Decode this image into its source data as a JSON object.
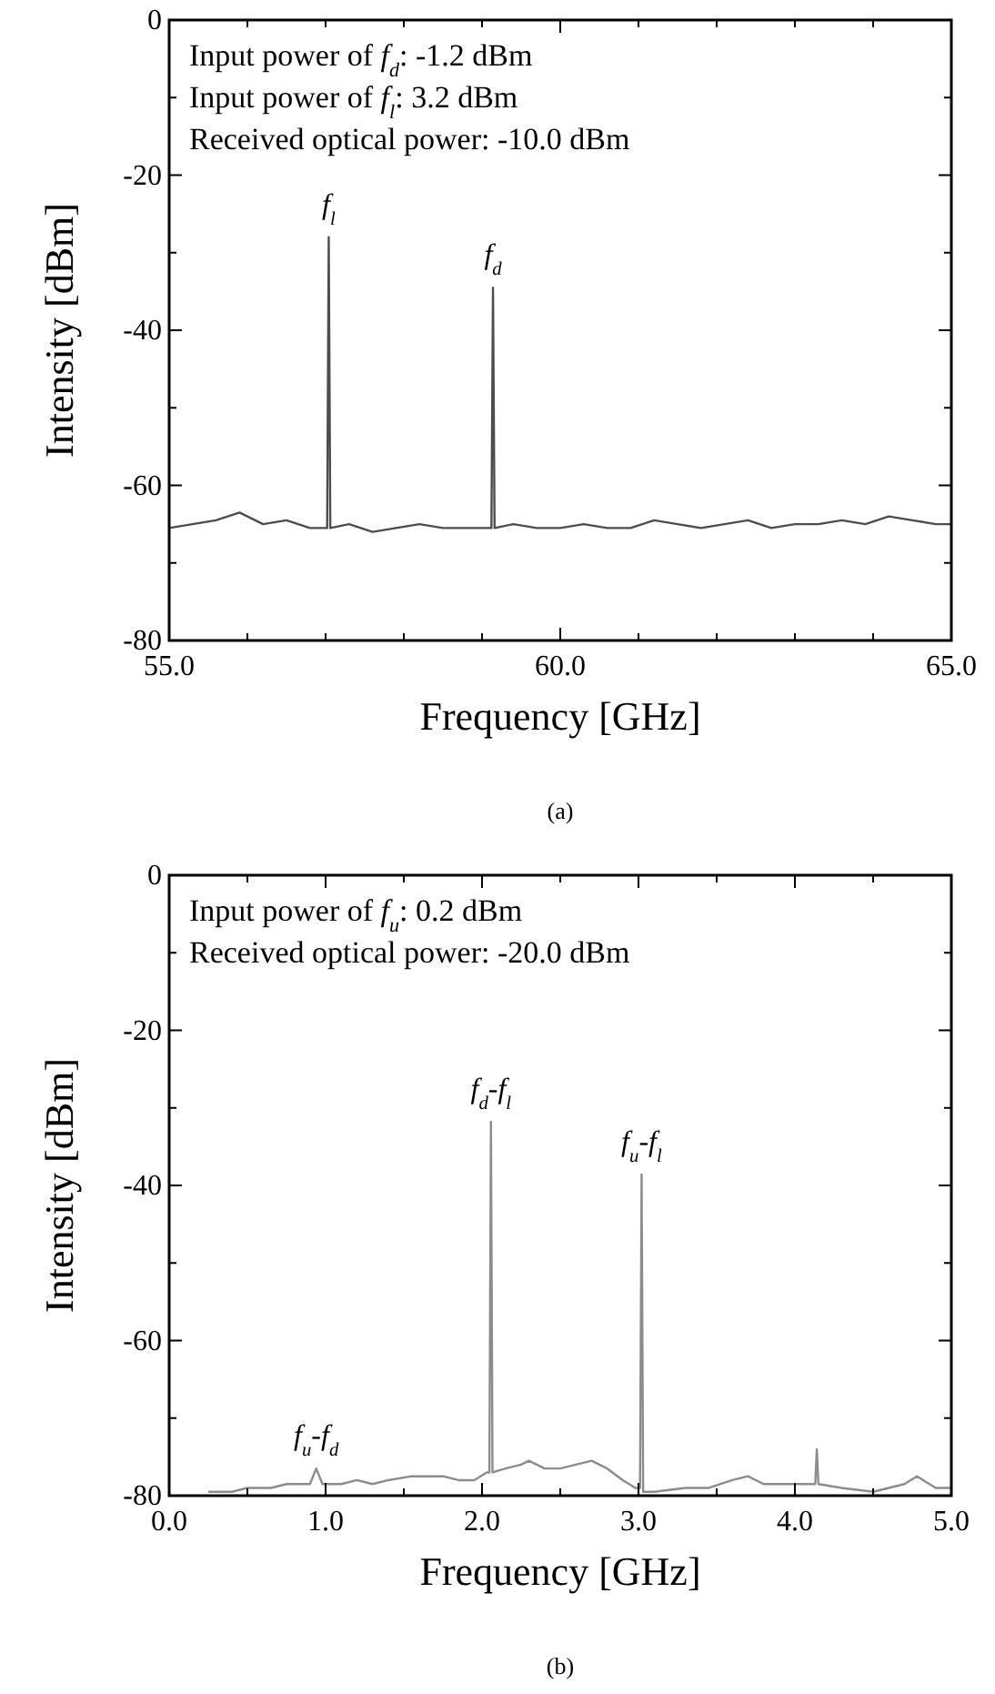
{
  "chart_data": [
    {
      "type": "line",
      "title": "(a)",
      "xlabel": "Frequency [GHz]",
      "ylabel": "Intensity [dBm]",
      "x": [
        55.0,
        55.3,
        55.6,
        55.9,
        56.2,
        56.5,
        56.8,
        57.02,
        57.04,
        57.06,
        57.3,
        57.6,
        57.9,
        58.2,
        58.5,
        58.8,
        59.12,
        59.14,
        59.16,
        59.4,
        59.7,
        60.0,
        60.3,
        60.6,
        60.9,
        61.2,
        61.5,
        61.8,
        62.1,
        62.4,
        62.7,
        63.0,
        63.3,
        63.6,
        63.9,
        64.2,
        64.5,
        64.8,
        65.0
      ],
      "series": [
        {
          "color": "#4d4d4d",
          "values": [
            -65.5,
            -65,
            -64.5,
            -63.5,
            -65,
            -64.5,
            -65.5,
            -65.5,
            -28,
            -65.5,
            -65,
            -66,
            -65.5,
            -65,
            -65.5,
            -65.5,
            -65.5,
            -34.5,
            -65.5,
            -65,
            -65.5,
            -65.5,
            -65,
            -65.5,
            -65.5,
            -64.5,
            -65,
            -65.5,
            -65,
            -64.5,
            -65.5,
            -65,
            -65,
            -64.5,
            -65,
            -64,
            -64.5,
            -65,
            -65
          ]
        }
      ],
      "xlim": [
        55,
        65
      ],
      "ylim": [
        -80,
        0
      ],
      "xticks": [
        {
          "value": 55,
          "label": "55.0"
        },
        {
          "value": 56,
          "label": null
        },
        {
          "value": 57,
          "label": null
        },
        {
          "value": 58,
          "label": null
        },
        {
          "value": 59,
          "label": null
        },
        {
          "value": 60,
          "label": "60.0"
        },
        {
          "value": 61,
          "label": null
        },
        {
          "value": 62,
          "label": null
        },
        {
          "value": 63,
          "label": null
        },
        {
          "value": 64,
          "label": null
        },
        {
          "value": 65,
          "label": "65.0"
        }
      ],
      "yticks": [
        -80,
        {
          "value": -70,
          "label": null
        },
        -60,
        {
          "value": -50,
          "label": null
        },
        -40,
        {
          "value": -30,
          "label": null
        },
        -20,
        {
          "value": -10,
          "label": null
        },
        0
      ],
      "annotations": [
        "Input power of f$_{d}$: -1.2 dBm",
        "Input power of f$_{l}$: 3.2 dBm",
        "Received optical power: -10.0 dBm",
        {
          "text": "f$_{l}$",
          "x": 57.04,
          "y": -28
        },
        {
          "text": "f$_{d}$",
          "x": 59.14,
          "y": -34.5
        }
      ]
    },
    {
      "type": "line",
      "title": "(b)",
      "xlabel": "Frequency [GHz]",
      "ylabel": "Intensity [dBm]",
      "x": [
        0.25,
        0.4,
        0.5,
        0.65,
        0.75,
        0.9,
        0.94,
        0.98,
        1.1,
        1.2,
        1.3,
        1.4,
        1.55,
        1.65,
        1.75,
        1.85,
        1.95,
        2.03,
        2.047,
        2.057,
        2.067,
        2.15,
        2.25,
        2.3,
        2.4,
        2.5,
        2.6,
        2.7,
        2.8,
        2.9,
        2.98,
        3.01,
        3.02,
        3.03,
        3.1,
        3.3,
        3.45,
        3.6,
        3.7,
        3.8,
        4.0,
        4.13,
        4.14,
        4.15,
        4.3,
        4.5,
        4.7,
        4.78,
        4.9,
        5.0
      ],
      "series": [
        {
          "color": "#8c8c8c",
          "values": [
            -79.5,
            -79.5,
            -79,
            -79,
            -78.5,
            -78.5,
            -76.5,
            -78.5,
            -78.5,
            -78,
            -78.5,
            -78,
            -77.5,
            -77.5,
            -77.5,
            -78,
            -78,
            -77,
            -77,
            -31.8,
            -77,
            -76.5,
            -76,
            -75.5,
            -76.5,
            -76.5,
            -76,
            -75.5,
            -76.5,
            -78,
            -79,
            -79,
            -38.6,
            -79.5,
            -79.5,
            -79,
            -79,
            -78,
            -77.5,
            -78.5,
            -78.5,
            -78.5,
            -74,
            -78.5,
            -79,
            -79.5,
            -78.5,
            -77.5,
            -79,
            -79
          ]
        }
      ],
      "xlim": [
        0,
        5
      ],
      "ylim": [
        -80,
        0
      ],
      "xticks": [
        {
          "value": 0,
          "label": "0.0"
        },
        {
          "value": 0.5,
          "label": null
        },
        {
          "value": 1,
          "label": "1.0"
        },
        {
          "value": 1.5,
          "label": null
        },
        {
          "value": 2,
          "label": "2.0"
        },
        {
          "value": 2.5,
          "label": null
        },
        {
          "value": 3,
          "label": "3.0"
        },
        {
          "value": 3.5,
          "label": null
        },
        {
          "value": 4,
          "label": "4.0"
        },
        {
          "value": 4.5,
          "label": null
        },
        {
          "value": 5,
          "label": "5.0"
        }
      ],
      "yticks": [
        -80,
        {
          "value": -70,
          "label": null
        },
        -60,
        {
          "value": -50,
          "label": null
        },
        -40,
        {
          "value": -30,
          "label": null
        },
        -20,
        {
          "value": -10,
          "label": null
        },
        0
      ],
      "annotations": [
        "Input power of f$_{u}$: 0.2 dBm",
        "Received optical power: -20.0 dBm",
        {
          "text": "f$_{d}$-f$_{l}$",
          "x": 2.057,
          "y": -31.8
        },
        {
          "text": "f$_{u}$-f$_{l}$",
          "x": 3.02,
          "y": -38.6
        },
        {
          "text": "f$_{u}$-f$_{d}$",
          "x": 0.94,
          "y": -76.5
        }
      ]
    }
  ]
}
